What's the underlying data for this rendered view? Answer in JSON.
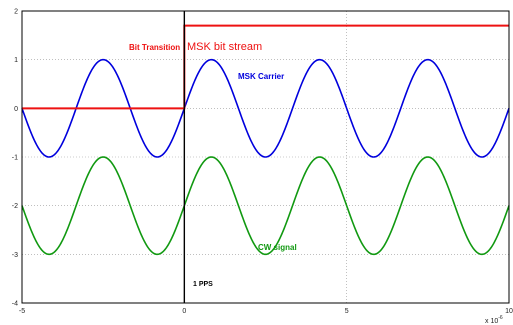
{
  "chart_data": {
    "type": "line",
    "title": "",
    "xlabel": "",
    "ylabel": "",
    "xlim": [
      -5,
      10
    ],
    "ylim": [
      -4,
      2
    ],
    "x_ticks": [
      "-5",
      "0",
      "5",
      "10"
    ],
    "y_ticks": [
      "2",
      "1",
      "0",
      "-1",
      "-2",
      "-3",
      "-4"
    ],
    "x_scale_label": "x 10",
    "x_scale_exponent": "-6",
    "grid": true,
    "series": [
      {
        "color": "#0000dd",
        "function": "sine",
        "amplitude": 1,
        "offset": 0,
        "period": 3.333,
        "phase_zero_at_x": 0,
        "x_range": [
          -5,
          10
        ]
      },
      {
        "color": "#119911",
        "function": "sine",
        "amplitude": 1,
        "offset": -2,
        "period": 3.333,
        "phase_zero_at_x": 0,
        "x_range": [
          -5,
          10
        ]
      },
      {
        "color": "#ee1111",
        "function": "step",
        "points": [
          [
            -5,
            0
          ],
          [
            0,
            0
          ],
          [
            0,
            1.7
          ],
          [
            10,
            1.7
          ]
        ]
      }
    ],
    "markers": [
      {
        "x": 0,
        "color": "#000000"
      }
    ],
    "annotations": {
      "bit_transition": "Bit Transition",
      "msk_bit_stream": "MSK bit stream",
      "msk_carrier": "MSK Carrier",
      "cw_signal": "CW signal",
      "pps": "1 PPS"
    },
    "colors": {
      "bit_transition": "#ee1111",
      "msk_bit_stream": "#ee1111",
      "msk_carrier": "#0000dd",
      "cw_signal": "#119911",
      "pps": "#000000"
    }
  }
}
